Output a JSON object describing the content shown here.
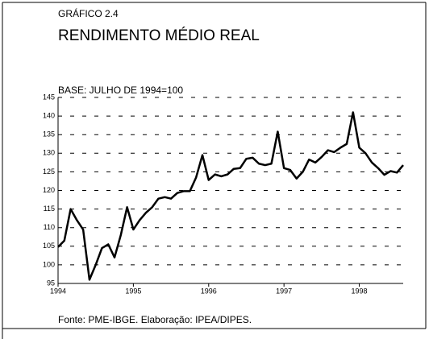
{
  "chart_data": {
    "type": "line",
    "supertitle": "GRÁFICO 2.4",
    "title": "RENDIMENTO MÉDIO REAL",
    "subtitle": "BASE: JULHO DE 1994=100",
    "source": "Fonte: PME-IBGE. Elaboração: IPEA/DIPES.",
    "x": [
      1994,
      1994.083,
      1994.167,
      1994.25,
      1994.333,
      1994.417,
      1994.5,
      1994.583,
      1994.667,
      1994.75,
      1994.833,
      1994.917,
      1995,
      1995.083,
      1995.167,
      1995.25,
      1995.333,
      1995.417,
      1995.5,
      1995.583,
      1995.667,
      1995.75,
      1995.833,
      1995.917,
      1996,
      1996.083,
      1996.167,
      1996.25,
      1996.333,
      1996.417,
      1996.5,
      1996.583,
      1996.667,
      1996.75,
      1996.833,
      1996.917,
      1997,
      1997.083,
      1997.167,
      1997.25,
      1997.333,
      1997.417,
      1997.5,
      1997.583,
      1997.667,
      1997.75,
      1997.833,
      1997.917,
      1998,
      1998.083,
      1998.167,
      1998.25,
      1998.333,
      1998.417,
      1998.5,
      1998.583
    ],
    "values": [
      104.8,
      106.5,
      115,
      112,
      109.5,
      96,
      100,
      104.5,
      105.5,
      102,
      108,
      115.5,
      109.5,
      112,
      114,
      115.5,
      117.8,
      118.2,
      117.8,
      119.3,
      119.8,
      119.8,
      123.5,
      129.5,
      122.8,
      124.3,
      123.8,
      124.3,
      125.8,
      126,
      128.5,
      128.8,
      127.2,
      126.8,
      127.2,
      135.8,
      126,
      125.5,
      123.2,
      125,
      128.3,
      127.5,
      129,
      130.8,
      130.3,
      131.5,
      132.5,
      141,
      131.5,
      130,
      127.5,
      126,
      124.2,
      125.2,
      124.8,
      126.8
    ],
    "color": "#000000",
    "xlim": [
      1994,
      1998.583
    ],
    "xticks": [
      1994,
      1995,
      1996,
      1997,
      1998
    ],
    "ylim": [
      95,
      145
    ],
    "yticks": [
      95,
      100,
      105,
      110,
      115,
      120,
      125,
      130,
      135,
      140,
      145
    ],
    "grid": true
  }
}
